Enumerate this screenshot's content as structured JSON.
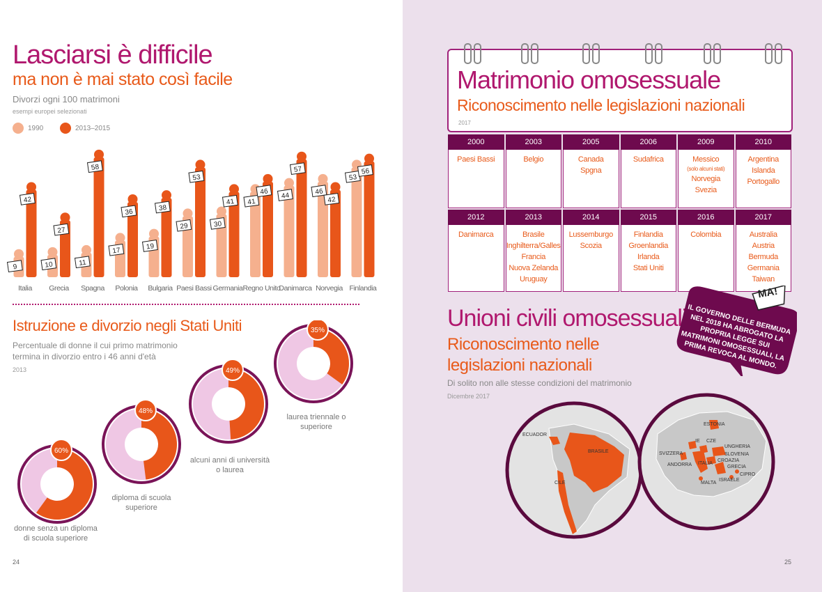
{
  "left_page": {
    "title": "Lasciarsi è difficile",
    "subtitle": "ma non è mai stato così facile",
    "description": "Divorzi ogni 100 matrimoni",
    "note": "esempi europei selezionati",
    "page_number": "24",
    "colors": {
      "series_1990": "#f5b08e",
      "series_2013": "#e8561a",
      "accent": "#b0186e"
    }
  },
  "chart_data": [
    {
      "type": "bar",
      "title": "Divorzi ogni 100 matrimoni",
      "categories": [
        "Italia",
        "Grecia",
        "Spagna",
        "Polonia",
        "Bulgaria",
        "Paesi Bassi",
        "Germania",
        "Regno Unito",
        "Danimarca",
        "Norvegia",
        "Finlandia"
      ],
      "series": [
        {
          "name": "1990",
          "values": [
            9,
            10,
            11,
            17,
            19,
            29,
            30,
            41,
            44,
            46,
            53
          ]
        },
        {
          "name": "2013–2015",
          "values": [
            42,
            27,
            58,
            36,
            38,
            53,
            41,
            46,
            57,
            42,
            56
          ]
        }
      ],
      "ylim": [
        0,
        60
      ],
      "legend": "top-left"
    },
    {
      "type": "pie",
      "title": "Istruzione e divorzio negli Stati Uniti",
      "categories": [
        "donne senza un diploma di scuola superiore",
        "diploma di scuola superiore",
        "alcuni anni di università o laurea",
        "laurea triennale o superiore"
      ],
      "values": [
        60,
        48,
        49,
        35
      ]
    }
  ],
  "section2": {
    "title": "Istruzione e divorzio negli Stati Uniti",
    "description": "Percentuale di donne il cui primo matrimonio termina in divorzio entro i 46 anni d'età",
    "year": "2013",
    "donuts": [
      {
        "value_label": "60%",
        "label": "donne senza un diploma di scuola superiore"
      },
      {
        "value_label": "48%",
        "label": "diploma di scuola superiore"
      },
      {
        "value_label": "49%",
        "label": "alcuni anni di università o laurea"
      },
      {
        "value_label": "35%",
        "label": "laurea triennale o superiore"
      }
    ]
  },
  "right_page": {
    "title": "Matrimonio omosessuale",
    "subtitle": "Riconoscimento nelle legislazioni nazionali",
    "year": "2017",
    "page_number": "25",
    "table": [
      {
        "year": "2000",
        "countries": "Paesi Bassi"
      },
      {
        "year": "2003",
        "countries": "Belgio"
      },
      {
        "year": "2005",
        "countries": "Canada\nSpgna"
      },
      {
        "year": "2006",
        "countries": "Sudafrica"
      },
      {
        "year": "2009",
        "countries": "Messico",
        "note": "(solo alcuni stati)",
        "countries2": "Norvegia\nSvezia"
      },
      {
        "year": "2010",
        "countries": "Argentina\nIslanda\nPortogallo"
      },
      {
        "year": "2012",
        "countries": "Danimarca"
      },
      {
        "year": "2013",
        "countries": "Brasile\nInghilterra/Galles\nFrancia\nNuova Zelanda\nUruguay"
      },
      {
        "year": "2014",
        "countries": "Lussemburgo\nScozia"
      },
      {
        "year": "2015",
        "countries": "Finlandia\nGroenlandia\nIrlanda\nStati Uniti"
      },
      {
        "year": "2016",
        "countries": "Colombia"
      },
      {
        "year": "2017",
        "countries": "Australia\nAustria\nBermuda\nGermania\nTaiwan"
      }
    ],
    "bubble": {
      "shout": "MA!",
      "text": "IL GOVERNO DELLE BERMUDA NEL 2018 HA ABROGATO LA PROPRIA LEGGE SUI MATRIMONI OMOSESSUALI, LA PRIMA REVOCA AL MONDO."
    },
    "civil_title": "Unioni civili omosessuali",
    "civil_subtitle": "Riconoscimento nelle legislazioni nazionali",
    "civil_desc": "Di solito non alle stesse condizioni del matrimonio",
    "civil_date": "Dicembre 2017",
    "map_sa_labels": [
      "ECUADOR",
      "BRASILE",
      "CILE"
    ],
    "map_eu_labels": [
      "ESTONIA",
      "IE",
      "CZE",
      "UNGHERIA",
      "SVIZZERA",
      "SLOVENIA",
      "ANDORRA",
      "ITALIA",
      "CROAZIA",
      "GRECIA",
      "MALTA",
      "ISRAELE",
      "CIPRO"
    ]
  }
}
